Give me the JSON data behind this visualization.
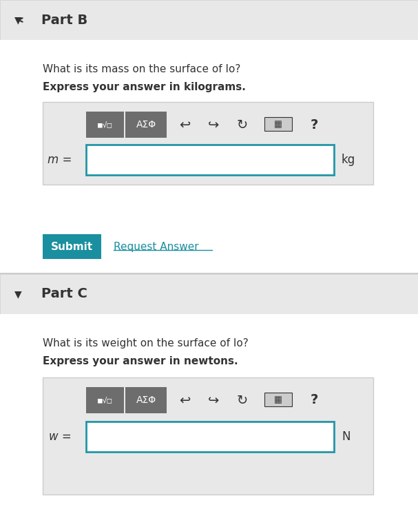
{
  "bg_color": "#f5f5f5",
  "white": "#ffffff",
  "border_color": "#cccccc",
  "teal": "#1a8fa0",
  "dark_teal": "#1a7a8a",
  "gray_btn": "#6d6d6d",
  "light_gray": "#e8e8e8",
  "text_dark": "#333333",
  "input_border": "#2196a8",
  "part_b_header": "Part B",
  "part_b_question": "What is its mass on the surface of Io?",
  "part_b_instruction": "Express your answer in kilograms.",
  "part_b_label": "m =",
  "part_b_unit": "kg",
  "part_c_header": "Part C",
  "part_c_question": "What is its weight on the surface of Io?",
  "part_c_instruction": "Express your answer in newtons.",
  "part_c_label": "w =",
  "part_c_unit": "N",
  "submit_text": "Submit",
  "request_text": "Request Answer",
  "math_btn_text": "■√□",
  "greek_btn_text": "ΑΣΦ"
}
